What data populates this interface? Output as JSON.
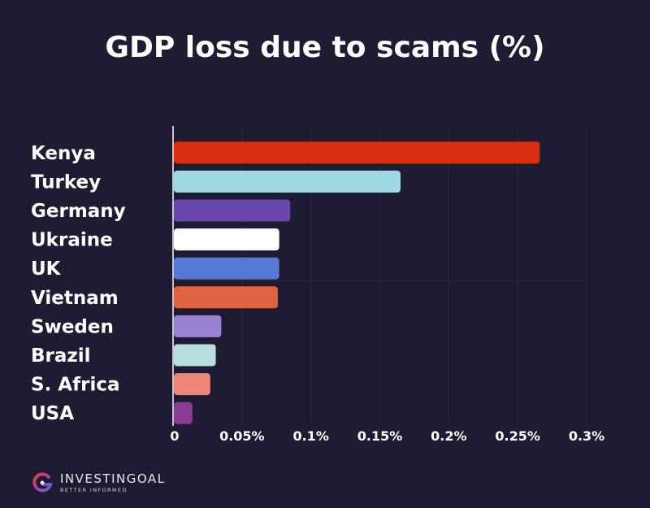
{
  "chart_data": {
    "type": "bar",
    "orientation": "horizontal",
    "title": "GDP loss due to scams (%)",
    "categories": [
      "Kenya",
      "Turkey",
      "Germany",
      "Ukraine",
      "UK",
      "Vietnam",
      "Sweden",
      "Brazil",
      "S. Africa",
      "USA"
    ],
    "values": [
      0.266,
      0.165,
      0.085,
      0.077,
      0.077,
      0.076,
      0.035,
      0.031,
      0.027,
      0.014
    ],
    "bar_colors": [
      "#dc2e11",
      "#9ed8e2",
      "#6a47ad",
      "#ffffff",
      "#5679d6",
      "#e0623e",
      "#9b83d3",
      "#b8dee0",
      "#ee8677",
      "#8d3d96"
    ],
    "xlim": [
      0,
      0.3
    ],
    "xticks": [
      0,
      0.05,
      0.1,
      0.15,
      0.2,
      0.25,
      0.3
    ],
    "xtick_labels": [
      "0",
      "0.05%",
      "0.1%",
      "0.15%",
      "0.2%",
      "0.25%",
      "0.3%"
    ],
    "xlabel": "",
    "ylabel": "",
    "grid": true
  },
  "branding": {
    "name": "INVESTINGOAL",
    "tagline": "BETTER INFORMED"
  },
  "colors": {
    "background": "#1e1b33",
    "gridline": "#2b2842",
    "axis": "#ffffff"
  }
}
